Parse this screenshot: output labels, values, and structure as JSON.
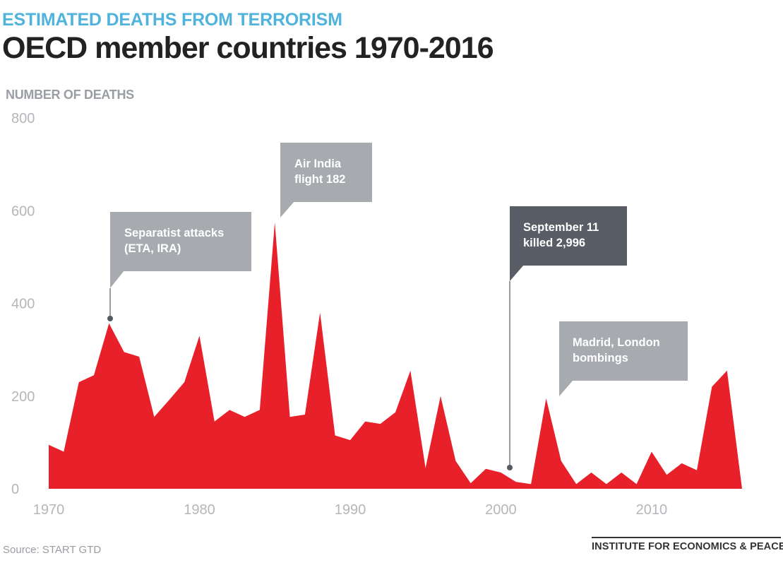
{
  "header": {
    "kicker": "ESTIMATED DEATHS FROM TERRORISM",
    "title": "OECD member countries 1970-2016"
  },
  "footer": {
    "source": "Source: START GTD",
    "brand": "INSTITUTE FOR ECONOMICS & PEACE"
  },
  "colors": {
    "area": "#e8202a",
    "callout_light": "#a7aaaf",
    "callout_dark": "#585d66",
    "kicker": "#4fb3dc"
  },
  "chart_data": {
    "type": "area",
    "title": "OECD member countries 1970-2016",
    "ylabel": "NUMBER OF DEATHS",
    "xlabel": "",
    "xlim": [
      1970,
      2016
    ],
    "ylim": [
      0,
      800
    ],
    "yticks": [
      "0",
      "200",
      "400",
      "600",
      "800"
    ],
    "xticks": [
      "1970",
      "1980",
      "1990",
      "2000",
      "2010"
    ],
    "xtick_values": [
      1970,
      1980,
      1990,
      2000,
      2010
    ],
    "grid": false,
    "series": [
      {
        "name": "Deaths",
        "x": [
          1970,
          1971,
          1972,
          1973,
          1974,
          1975,
          1976,
          1977,
          1978,
          1979,
          1980,
          1981,
          1982,
          1983,
          1984,
          1985,
          1986,
          1987,
          1988,
          1989,
          1990,
          1991,
          1992,
          1993,
          1994,
          1995,
          1996,
          1997,
          1998,
          1999,
          2000,
          2001,
          2002,
          2003,
          2004,
          2005,
          2006,
          2007,
          2008,
          2009,
          2010,
          2011,
          2012,
          2013,
          2014,
          2015,
          2016
        ],
        "values": [
          95,
          80,
          230,
          245,
          357,
          295,
          285,
          155,
          192,
          230,
          330,
          145,
          170,
          155,
          170,
          575,
          155,
          160,
          380,
          115,
          105,
          145,
          140,
          165,
          255,
          45,
          200,
          60,
          12,
          43,
          35,
          15,
          10,
          195,
          60,
          10,
          35,
          10,
          35,
          10,
          80,
          30,
          55,
          40,
          220,
          255,
          0
        ]
      }
    ],
    "annotations": [
      {
        "lines": [
          "Separatist attacks",
          "(ETA, IRA)"
        ],
        "year": 1974.2,
        "value": 368,
        "style": "light"
      },
      {
        "lines": [
          "Air India",
          "flight 182"
        ],
        "year": 1985.4,
        "value": 575,
        "style": "light"
      },
      {
        "lines": [
          "September 11",
          "killed 2,996"
        ],
        "year": 2001.8,
        "value": 46,
        "style": "dark"
      },
      {
        "lines": [
          "Madrid, London",
          "bombings"
        ],
        "year": 2004.2,
        "value": 200,
        "style": "light"
      }
    ]
  }
}
